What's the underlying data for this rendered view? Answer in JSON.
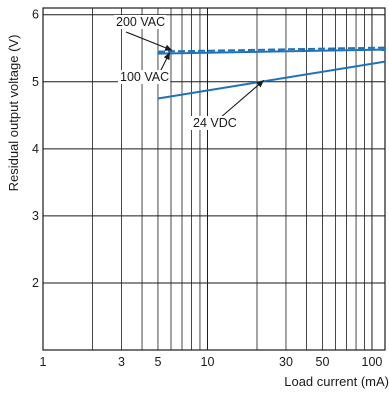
{
  "chart_data": {
    "type": "line",
    "xlabel": "Load current (mA)",
    "ylabel": "Residual output voltage (V)",
    "xscale": "log",
    "xlim": [
      1,
      120
    ],
    "ylim": [
      1,
      6.1
    ],
    "grid": true,
    "x_ticks": [
      {
        "value": 1,
        "label": "1"
      },
      {
        "value": 3,
        "label": "3"
      },
      {
        "value": 5,
        "label": "5"
      },
      {
        "value": 10,
        "label": "10"
      },
      {
        "value": 30,
        "label": "30"
      },
      {
        "value": 50,
        "label": "50"
      },
      {
        "value": 100,
        "label": "100"
      }
    ],
    "y_ticks": [
      {
        "value": 2,
        "label": "2"
      },
      {
        "value": 3,
        "label": "3"
      },
      {
        "value": 4,
        "label": "4"
      },
      {
        "value": 5,
        "label": "5"
      },
      {
        "value": 6,
        "label": "6"
      }
    ],
    "series": [
      {
        "name": "200 VAC",
        "x": [
          5,
          120
        ],
        "y": [
          5.45,
          5.51
        ],
        "color": "#1f72b8",
        "style": "dashed"
      },
      {
        "name": "100 VAC",
        "x": [
          5,
          120
        ],
        "y": [
          5.42,
          5.48
        ],
        "color": "#1f72b8",
        "style": "solid"
      },
      {
        "name": "24 VDC",
        "x": [
          5,
          120
        ],
        "y": [
          4.75,
          5.3
        ],
        "color": "#1f72b8",
        "style": "solid"
      }
    ],
    "annotations": [
      {
        "text": "200 VAC",
        "series": "200 VAC",
        "at_x": 6.1
      },
      {
        "text": "100 VAC",
        "series": "100 VAC",
        "at_x": 5.9
      },
      {
        "text": "24 VDC",
        "series": "24 VDC",
        "at_x": 22
      }
    ]
  }
}
